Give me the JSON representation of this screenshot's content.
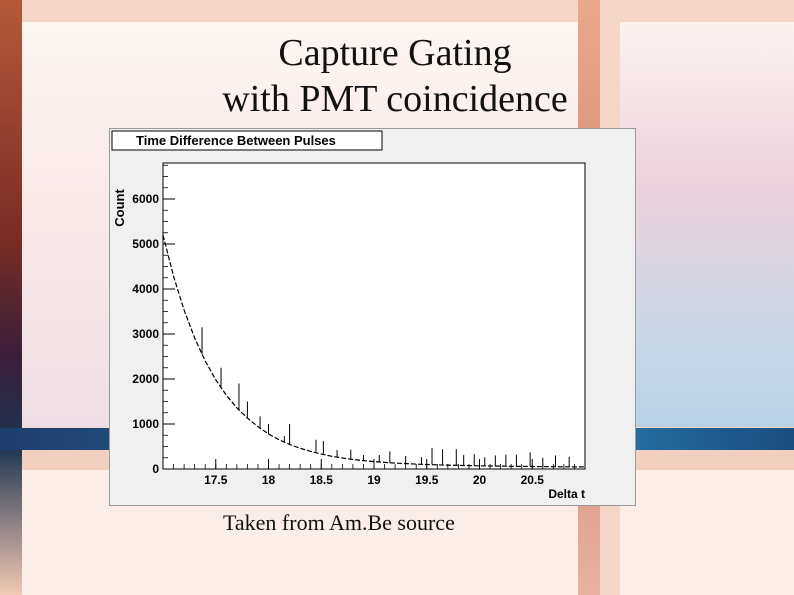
{
  "slide": {
    "title_line1": "Capture Gating",
    "title_line2": "with PMT coincidence",
    "caption": "Taken from Am.Be source"
  },
  "chart_data": {
    "type": "line",
    "title": "Time Difference Between Pulses",
    "xlabel": "Delta t",
    "ylabel": "Count",
    "xlim": [
      17.0,
      21.0
    ],
    "ylim": [
      0,
      6800
    ],
    "xticks": [
      17.5,
      18,
      18.5,
      19,
      19.5,
      20,
      20.5
    ],
    "xtick_labels": [
      "17.5",
      "18",
      "18.5",
      "19",
      "19.5",
      "20",
      "20.5"
    ],
    "yticks": [
      0,
      1000,
      2000,
      3000,
      4000,
      5000,
      6000
    ],
    "ytick_labels": [
      "0",
      "1000",
      "2000",
      "3000",
      "4000",
      "5000",
      "6000"
    ],
    "grid": false,
    "series": [
      {
        "x": [
          17.0,
          17.1,
          17.2,
          17.3,
          17.4,
          17.5,
          17.6,
          17.7,
          17.8,
          17.9,
          18.0,
          18.1,
          18.2,
          18.3,
          18.4,
          18.5,
          18.6,
          18.7,
          18.8,
          18.9,
          19.0,
          19.2,
          19.4,
          19.6,
          19.8,
          20.0,
          20.2,
          20.4,
          20.6,
          20.8,
          21.0
        ],
        "values": [
          5200,
          4280,
          3530,
          2910,
          2400,
          1980,
          1640,
          1360,
          1130,
          940,
          780,
          650,
          545,
          460,
          390,
          330,
          282,
          244,
          212,
          186,
          164,
          131,
          108,
          92,
          80,
          71,
          64,
          58,
          54,
          50,
          47
        ]
      }
    ],
    "spikes": [
      {
        "x": 17.37,
        "value": 3150
      },
      {
        "x": 17.55,
        "value": 2250
      },
      {
        "x": 17.72,
        "value": 1900
      },
      {
        "x": 17.8,
        "value": 1500
      },
      {
        "x": 17.92,
        "value": 1170
      },
      {
        "x": 18.0,
        "value": 1000
      },
      {
        "x": 18.15,
        "value": 730
      },
      {
        "x": 18.2,
        "value": 1000
      },
      {
        "x": 18.45,
        "value": 650
      },
      {
        "x": 18.52,
        "value": 620
      },
      {
        "x": 18.65,
        "value": 420
      },
      {
        "x": 18.78,
        "value": 430
      },
      {
        "x": 18.9,
        "value": 310
      },
      {
        "x": 19.05,
        "value": 310
      },
      {
        "x": 19.15,
        "value": 390
      },
      {
        "x": 19.3,
        "value": 290
      },
      {
        "x": 19.45,
        "value": 260
      },
      {
        "x": 19.55,
        "value": 470
      },
      {
        "x": 19.65,
        "value": 440
      },
      {
        "x": 19.78,
        "value": 440
      },
      {
        "x": 19.85,
        "value": 310
      },
      {
        "x": 19.95,
        "value": 330
      },
      {
        "x": 20.05,
        "value": 260
      },
      {
        "x": 20.15,
        "value": 300
      },
      {
        "x": 20.25,
        "value": 320
      },
      {
        "x": 20.35,
        "value": 320
      },
      {
        "x": 20.48,
        "value": 370
      },
      {
        "x": 20.6,
        "value": 250
      },
      {
        "x": 20.72,
        "value": 300
      },
      {
        "x": 20.85,
        "value": 270
      }
    ]
  }
}
